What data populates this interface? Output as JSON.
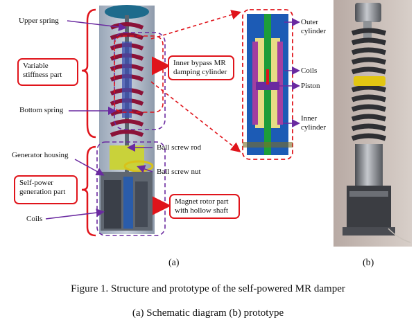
{
  "labels": {
    "upper_spring": "Upper spring",
    "variable_stiffness": "Variable stiffness part",
    "bottom_spring": "Bottom spring",
    "generator_housing": "Generator housing",
    "self_power": "Self-power generation part",
    "coils_left": "Coils",
    "inner_bypass": "Inner bypass MR damping cylinder",
    "ball_screw_rod": "Ball screw rod",
    "ball_screw_nut": "Ball screw nut",
    "magnet_rotor": "Magnet rotor  part with hollow shaft",
    "outer_cylinder": "Outer cylinder",
    "coils_right": "Coils",
    "piston": "Piston",
    "inner_cylinder": "Inner cylinder"
  },
  "sublabels": {
    "a": "(a)",
    "b": "(b)"
  },
  "caption": {
    "line1": "Figure 1. Structure and prototype of the self-powered MR damper",
    "line2": "(a) Schematic diagram (b) prototype"
  },
  "colors": {
    "red": "#e0141b",
    "purple": "#6a2aa0",
    "spring": "#8b1238"
  }
}
